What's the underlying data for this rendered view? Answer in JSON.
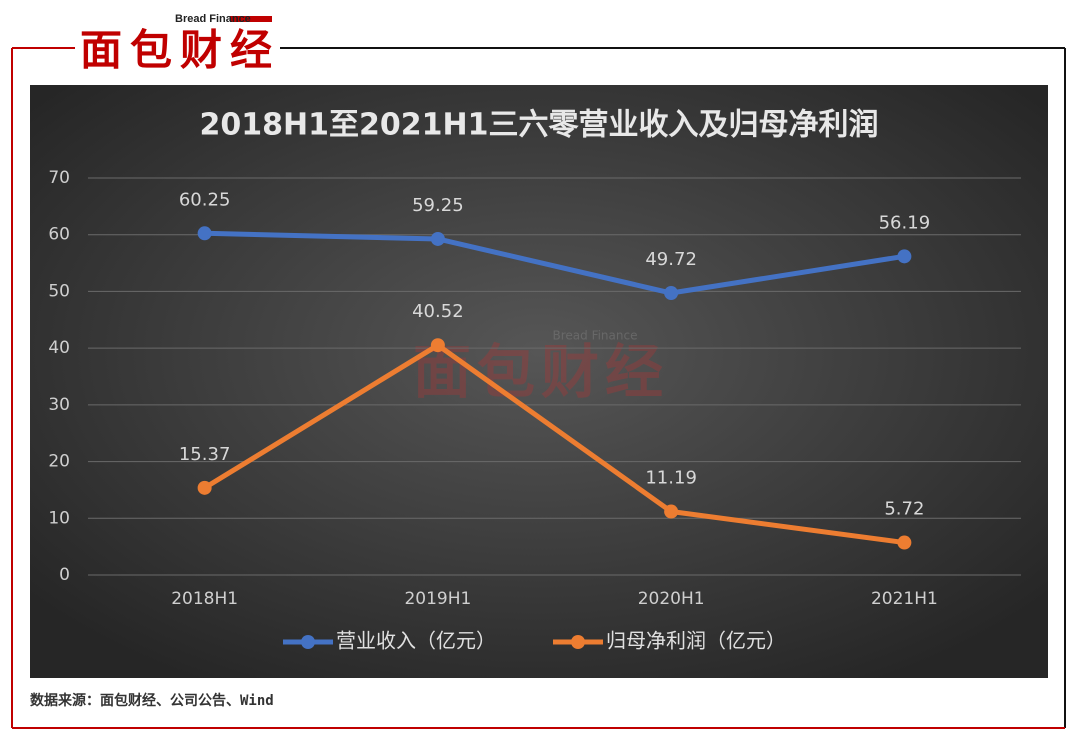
{
  "logo": {
    "name": "面包财经",
    "subtitle": "Bread Finance"
  },
  "source": "数据来源：面包财经、公司公告、Wind",
  "chart_data": {
    "type": "line",
    "title": "2018H1至2021H1三六零营业收入及归母净利润",
    "categories": [
      "2018H1",
      "2019H1",
      "2020H1",
      "2021H1"
    ],
    "series": [
      {
        "name": "营业收入（亿元）",
        "color": "#4472c4",
        "values": [
          60.25,
          59.25,
          49.72,
          56.19
        ]
      },
      {
        "name": "归母净利润（亿元）",
        "color": "#ed7d31",
        "values": [
          15.37,
          40.52,
          11.19,
          5.72
        ]
      }
    ],
    "ylim": [
      0,
      70
    ],
    "yticks": [
      0,
      10,
      20,
      30,
      40,
      50,
      60,
      70
    ],
    "grid": true,
    "legend": "bottom"
  }
}
